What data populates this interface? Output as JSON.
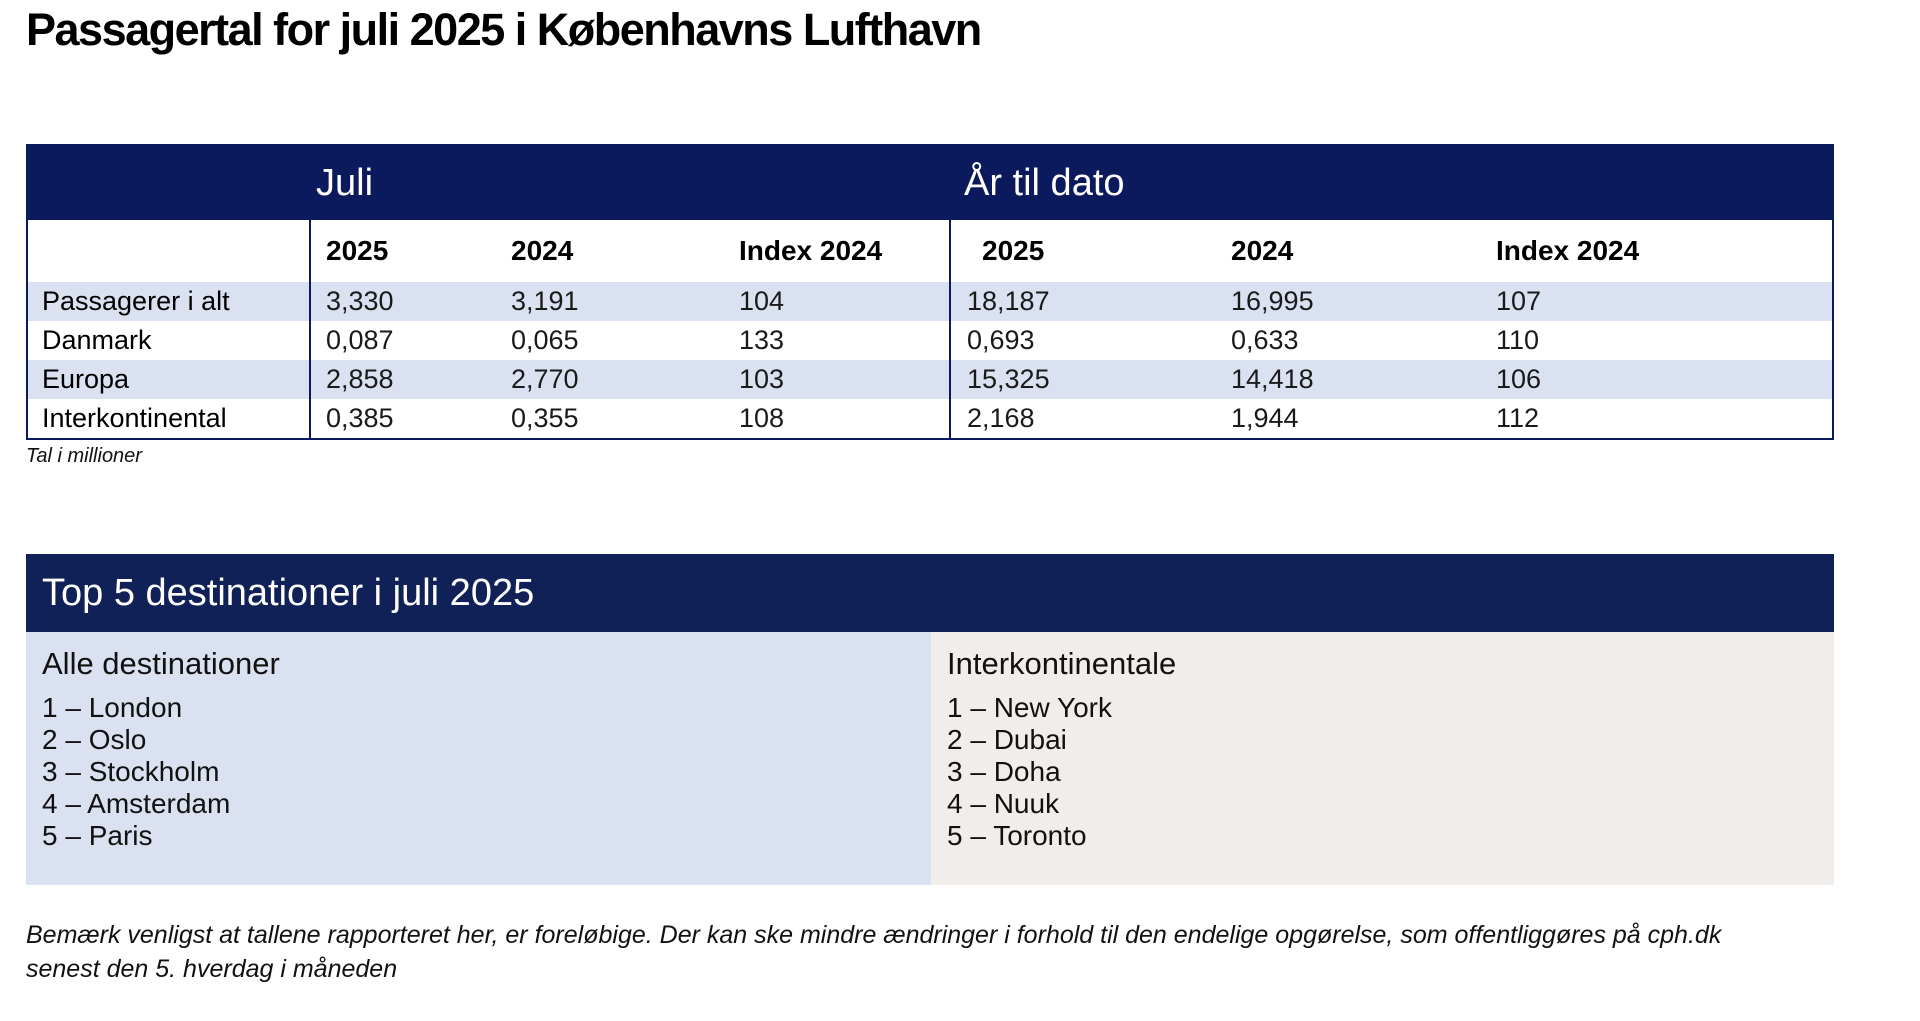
{
  "title": "Passagertal for juli 2025 i Københavns Lufthavn",
  "stats": {
    "groups": [
      "Juli",
      "År til dato"
    ],
    "columns": [
      "",
      "2025",
      "2024",
      "Index 2024",
      "2025",
      "2024",
      "Index 2024"
    ],
    "rows": [
      {
        "label": "Passagerer i alt",
        "values": [
          "3,330",
          "3,191",
          "104",
          "18,187",
          "16,995",
          "107"
        ]
      },
      {
        "label": "Danmark",
        "values": [
          "0,087",
          "0,065",
          "133",
          "0,693",
          "0,633",
          "110"
        ]
      },
      {
        "label": "Europa",
        "values": [
          "2,858",
          "2,770",
          "103",
          "15,325",
          "14,418",
          "106"
        ]
      },
      {
        "label": "Interkontinental",
        "values": [
          "0,385",
          "0,355",
          "108",
          "2,168",
          "1,944",
          "112"
        ]
      }
    ],
    "footnote": "Tal i millioner"
  },
  "top5": {
    "title": "Top 5 destinationer i juli 2025",
    "all": {
      "title": "Alle destinationer",
      "items": [
        "1 – London",
        "2 – Oslo",
        "3 – Stockholm",
        "4 – Amsterdam",
        "5 – Paris"
      ]
    },
    "intercontinental": {
      "title": "Interkontinentale",
      "items": [
        "1 – New York",
        "2 – Dubai",
        "3 – Doha",
        "4 – Nuuk",
        "5 – Toronto"
      ]
    }
  },
  "note": {
    "line1": "Bemærk venligst at tallene rapporteret her, er foreløbige. Der kan ske mindre ændringer i forhold til den endelige opgørelse, som offentliggøres på cph.dk",
    "line2": "senest den 5. hverdag i måneden"
  },
  "colors": {
    "header_navy": "#0b1a5c",
    "row_shade": "#dae1f1",
    "panel_beige": "#f1edeb"
  }
}
